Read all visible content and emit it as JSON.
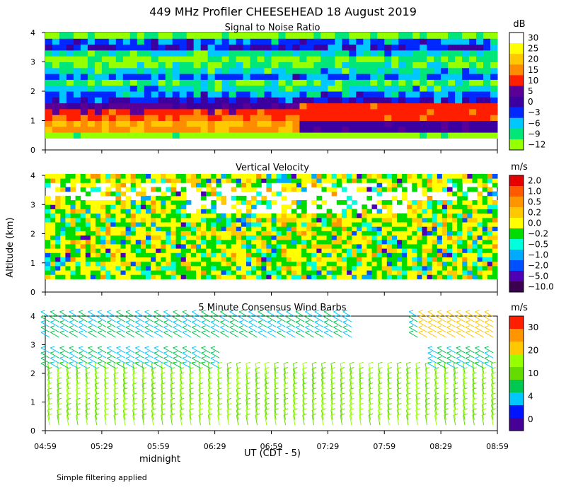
{
  "figure": {
    "title": "449 MHz Profiler CHEESEHEAD 18 August 2019",
    "ylabel": "Altitude (km)",
    "xlabel": "UT  (CDT - 5)",
    "midnight_label": "midnight",
    "footnote": "Simple filtering applied"
  },
  "chart_data": [
    {
      "type": "heatmap",
      "title": "Signal to Noise Ratio",
      "colorbar_unit": "dB",
      "colorbar_ticks": [
        "30",
        "25",
        "20",
        "15",
        "10",
        "5",
        "0",
        "−3",
        "−6",
        "−9",
        "−12"
      ],
      "colorbar_colors": [
        "#ffffff",
        "#ffff00",
        "#ffc800",
        "#ff8c00",
        "#ff1e00",
        "#5a0096",
        "#3c00a0",
        "#0028ff",
        "#00c8ff",
        "#00e678",
        "#96ff00"
      ],
      "x_ticks": [
        "04:59",
        "05:29",
        "05:59",
        "06:29",
        "06:59",
        "07:29",
        "07:59",
        "08:29",
        "08:59"
      ],
      "y_ticks": [
        "0",
        "1",
        "2",
        "3",
        "4"
      ],
      "xlim": [
        "04:59",
        "08:59"
      ],
      "ylim": [
        0,
        4
      ],
      "profile_km": [
        {
          "alt": 0.5,
          "snr": -12
        },
        {
          "alt": 0.7,
          "snr": 18
        },
        {
          "alt": 0.9,
          "snr": 20
        },
        {
          "alt": 1.1,
          "snr": 16
        },
        {
          "alt": 1.3,
          "snr": 12
        },
        {
          "alt": 1.5,
          "snr": 5
        },
        {
          "alt": 1.7,
          "snr": 0
        },
        {
          "alt": 1.9,
          "snr": -3
        },
        {
          "alt": 2.1,
          "snr": -6
        },
        {
          "alt": 2.3,
          "snr": -9
        },
        {
          "alt": 2.5,
          "snr": -3
        },
        {
          "alt": 2.7,
          "snr": -6
        },
        {
          "alt": 2.9,
          "snr": -9
        },
        {
          "alt": 3.1,
          "snr": -10
        },
        {
          "alt": 3.3,
          "snr": -6
        },
        {
          "alt": 3.5,
          "snr": 0
        },
        {
          "alt": 3.7,
          "snr": -3
        },
        {
          "alt": 3.9,
          "snr": -10
        }
      ]
    },
    {
      "type": "heatmap",
      "title": "Vertical Velocity",
      "colorbar_unit": "m/s",
      "colorbar_ticks": [
        "2.0",
        "1.0",
        "0.5",
        "0.2",
        "0.0",
        "−0.2",
        "−0.5",
        "−1.0",
        "−2.0",
        "−5.0",
        "−10.0"
      ],
      "colorbar_colors": [
        "#e60000",
        "#ff5a00",
        "#ff9600",
        "#ffc800",
        "#ffff00",
        "#00dc00",
        "#00ffdc",
        "#00aaff",
        "#0050ff",
        "#5000b4",
        "#3c0050"
      ],
      "x_ticks": [
        "04:59",
        "05:29",
        "05:59",
        "06:29",
        "06:59",
        "07:29",
        "07:59",
        "08:29",
        "08:59"
      ],
      "y_ticks": [
        "0",
        "1",
        "2",
        "3",
        "4"
      ],
      "xlim": [
        "04:59",
        "08:59"
      ],
      "ylim": [
        0,
        4
      ]
    },
    {
      "type": "scatter",
      "title": "5 Minute Consensus Wind Barbs",
      "colorbar_unit": "m/s",
      "colorbar_ticks": [
        "30",
        "20",
        "10",
        "4",
        "0"
      ],
      "colorbar_colors": [
        "#ff1e00",
        "#ff9600",
        "#ffc800",
        "#96ff00",
        "#64dc00",
        "#00c850",
        "#00c8ff",
        "#0014ff",
        "#460096"
      ],
      "x_ticks": [
        "04:59",
        "05:29",
        "05:59",
        "06:29",
        "06:59",
        "07:29",
        "07:59",
        "08:29",
        "08:59"
      ],
      "y_ticks": [
        "0",
        "1",
        "2",
        "3",
        "4"
      ],
      "xlim": [
        "04:59",
        "08:59"
      ],
      "ylim": [
        0,
        4
      ],
      "mean_speed_ms": {
        "below_2km": 10,
        "layer_2_to_3km": 8,
        "above_3km": 10,
        "upper_late": 20
      }
    }
  ]
}
